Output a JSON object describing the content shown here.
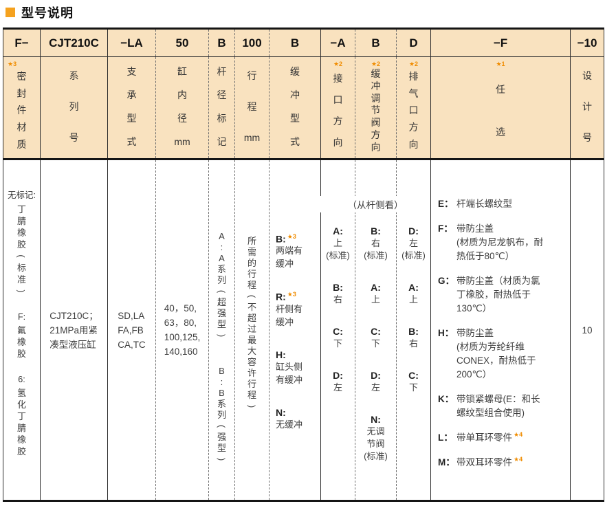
{
  "title": {
    "text": "型号说明"
  },
  "colors": {
    "header_bg": "#f9e2bf",
    "accent_orange": "#f5a21f",
    "star_orange": "#f08c00"
  },
  "view_note": "（从杆侧看）",
  "columns": [
    {
      "code": "F−",
      "star": "★3",
      "label": [
        "密",
        "封",
        "件",
        "材",
        "质"
      ],
      "body": {
        "items": [
          {
            "key": "无标记:",
            "chars": [
              "丁",
              "腈",
              "橡",
              "胶",
              "(",
              "标",
              "准",
              ")"
            ]
          },
          {
            "key": "F:",
            "chars": [
              "氟",
              "橡",
              "胶"
            ]
          },
          {
            "key": "6:",
            "chars": [
              "氢",
              "化",
              "丁",
              "腈",
              "橡",
              "胶"
            ]
          }
        ]
      }
    },
    {
      "code": "CJT210C",
      "label": [
        "系",
        "列",
        "号"
      ],
      "body": {
        "lines": [
          "CJT210C；",
          "21MPa用紧",
          "凑型液压缸"
        ]
      }
    },
    {
      "code": "−LA",
      "label": [
        "支",
        "承",
        "型",
        "式"
      ],
      "body": {
        "lines": [
          "SD,LA",
          "FA,FB",
          "CA,TC"
        ]
      }
    },
    {
      "code": "50",
      "label": [
        "缸",
        "内",
        "径",
        "mm"
      ],
      "body": {
        "lines": [
          "40，50,",
          "63，80,",
          "100,125,",
          "140,160"
        ]
      }
    },
    {
      "code": "B",
      "label": [
        "杆",
        "径",
        "标",
        "记"
      ],
      "body": {
        "items": [
          {
            "chars": [
              "A",
              ":",
              "A",
              "系",
              "列",
              "(",
              "超",
              "强",
              "型",
              ")"
            ]
          },
          {
            "chars": [
              "B",
              ":",
              "B",
              "系",
              "列",
              "(",
              "强",
              "型",
              ")"
            ]
          }
        ]
      }
    },
    {
      "code": "100",
      "label": [
        "行",
        "程",
        "mm"
      ],
      "body": {
        "chars": [
          "所",
          "需",
          "的",
          "行",
          "程",
          "(",
          "不",
          "超",
          "过",
          "最",
          "大",
          "容",
          "许",
          "行",
          "程",
          ")"
        ]
      }
    },
    {
      "code": "B",
      "label": [
        "缓",
        "冲",
        "型",
        "式"
      ],
      "body": {
        "items": [
          {
            "key": "B:",
            "star": "★3",
            "lines": [
              "两端有",
              "缓冲"
            ]
          },
          {
            "key": "R:",
            "star": "★3",
            "lines": [
              "杆侧有",
              "缓冲"
            ]
          },
          {
            "key": "H:",
            "star": "",
            "lines": [
              "缸头侧",
              "有缓冲"
            ]
          },
          {
            "key": "N:",
            "star": "",
            "lines": [
              "无缓冲"
            ]
          }
        ]
      }
    },
    {
      "code": "−A",
      "star": "★2",
      "label": [
        "接",
        "口",
        "方",
        "向"
      ],
      "body": {
        "items": [
          {
            "key": "A:",
            "lines": [
              "上",
              "(标准)"
            ]
          },
          {
            "key": "B:",
            "lines": [
              "右"
            ]
          },
          {
            "key": "C:",
            "lines": [
              "下"
            ]
          },
          {
            "key": "D:",
            "lines": [
              "左"
            ]
          }
        ]
      }
    },
    {
      "code": "B",
      "star": "★2",
      "label": [
        "缓",
        "冲",
        "调",
        "节",
        "阀",
        "方",
        "向"
      ],
      "body": {
        "items": [
          {
            "key": "B:",
            "lines": [
              "右",
              "(标准)"
            ]
          },
          {
            "key": "A:",
            "lines": [
              "上"
            ]
          },
          {
            "key": "C:",
            "lines": [
              "下"
            ]
          },
          {
            "key": "D:",
            "lines": [
              "左"
            ]
          },
          {
            "key": "N:",
            "lines": [
              "无调",
              "节阀",
              "(标准)"
            ]
          }
        ]
      }
    },
    {
      "code": "D",
      "star": "★2",
      "label": [
        "排",
        "气",
        "口",
        "方",
        "向"
      ],
      "body": {
        "items": [
          {
            "key": "D:",
            "lines": [
              "左",
              "(标准)"
            ]
          },
          {
            "key": "A:",
            "lines": [
              "上"
            ]
          },
          {
            "key": "B:",
            "lines": [
              "右"
            ]
          },
          {
            "key": "C:",
            "lines": [
              "下"
            ]
          }
        ]
      }
    },
    {
      "code": "−F",
      "star": "★1",
      "label": [
        "任",
        "选"
      ],
      "body": {
        "items": [
          {
            "key": "E：",
            "star": "",
            "lines": [
              "杆端长螺纹型"
            ]
          },
          {
            "key": "F：",
            "star": "",
            "lines": [
              "带防尘盖",
              "(材质为尼龙帆布，耐",
              "热低于80℃）"
            ]
          },
          {
            "key": "G：",
            "star": "",
            "lines": [
              "带防尘盖（材质为氯",
              "丁橡胶，耐热低于",
              "130℃）"
            ]
          },
          {
            "key": "H：",
            "star": "",
            "lines": [
              "带防尘盖",
              "(材质为芳纶纤维",
              "CONEX，耐热低于",
              "200℃）"
            ]
          },
          {
            "key": "K：",
            "star": "",
            "lines": [
              "带锁紧螺母(E：和长",
              "螺纹型组合使用)"
            ]
          },
          {
            "key": "L：",
            "star": "★4",
            "lines": [
              "带单耳环零件"
            ]
          },
          {
            "key": "M：",
            "star": "★4",
            "lines": [
              "带双耳环零件"
            ]
          }
        ]
      }
    },
    {
      "code": "−10",
      "label": [
        "设",
        "计",
        "号"
      ],
      "body": {
        "value": "10"
      }
    }
  ]
}
